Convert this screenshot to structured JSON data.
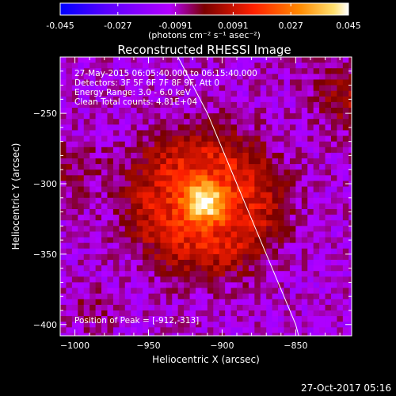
{
  "chart_data": {
    "type": "heatmap",
    "title": "Reconstructed RHESSI Image",
    "xlabel": "Heliocentric X (arcsec)",
    "ylabel": "Heliocentric Y (arcsec)",
    "xlim": [
      -1010,
      -812
    ],
    "ylim": [
      -408,
      -210
    ],
    "xticks": [
      -1000,
      -950,
      -900,
      -850
    ],
    "yticks": [
      -250,
      -300,
      -350,
      -400
    ],
    "colorbar": {
      "range": [
        -0.045,
        0.045
      ],
      "ticks": [
        "-0.045",
        "-0.027",
        "-0.0091",
        "0.0091",
        "0.027",
        "0.045"
      ],
      "units": "(photons cm⁻² s⁻¹ asec⁻²)",
      "colors": [
        "#0000ff",
        "#5a00ff",
        "#b400ff",
        "#7a0000",
        "#ff2000",
        "#ff8a00",
        "#ffe070",
        "#ffffff"
      ]
    },
    "annotations": [
      "27-May-2015 06:05:40.000 to 06:15:40.000",
      "Detectors: 3F 5F 6F 7F 8F 9F, Att 0",
      "Energy Range: 3.0 - 6.0 keV",
      "Clean     Total counts: 4.81E+04"
    ],
    "peak_label": "Position of Peak = [-912,-313]",
    "peak": {
      "x": -912,
      "y": -313,
      "value": 0.045
    },
    "limb_curve": [
      [
        -930,
        -210
      ],
      [
        -910,
        -250
      ],
      [
        -890,
        -300
      ],
      [
        -870,
        -350
      ],
      [
        -850,
        -400
      ],
      [
        -848,
        -408
      ]
    ],
    "grid": false
  },
  "footer": {
    "timestamp": "27-Oct-2017 05:16"
  }
}
